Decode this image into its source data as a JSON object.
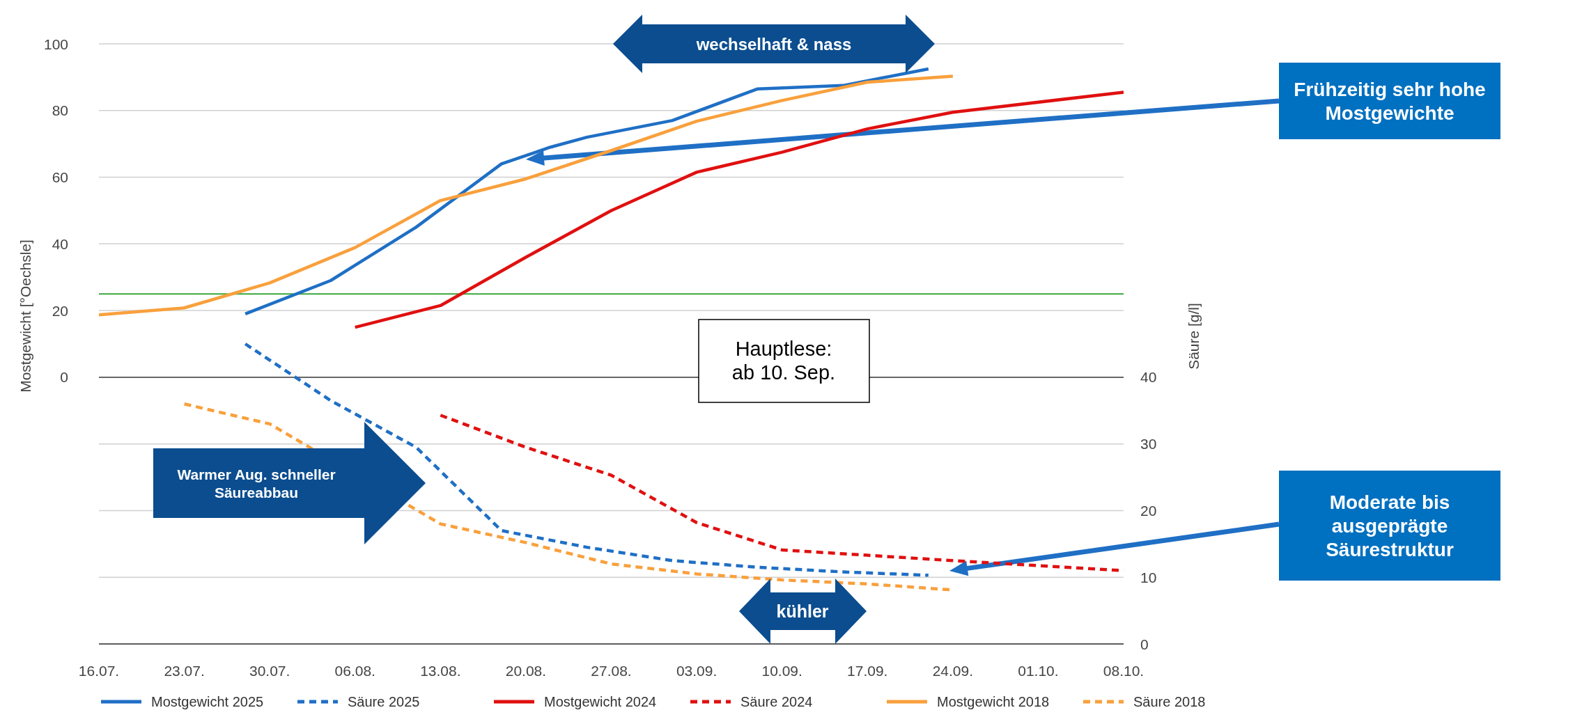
{
  "chart_data": {
    "type": "line",
    "xlabel": null,
    "ylabel": "Mostgewicht [°Oechsle]",
    "y2label": "Säure [g/l]",
    "xlim": [
      "--07-16",
      "--10-08"
    ],
    "xticks": [
      {
        "value": "--07-16",
        "label": "16.07."
      },
      {
        "value": "--07-23",
        "label": "23.07."
      },
      {
        "value": "--07-30",
        "label": "30.07."
      },
      {
        "value": "--08-06",
        "label": "06.08."
      },
      {
        "value": "--08-13",
        "label": "13.08."
      },
      {
        "value": "--08-20",
        "label": "20.08."
      },
      {
        "value": "--08-27",
        "label": "27.08."
      },
      {
        "value": "--09-03",
        "label": "03.09."
      },
      {
        "value": "--09-10",
        "label": "10.09."
      },
      {
        "value": "--09-17",
        "label": "17.09."
      },
      {
        "value": "--09-24",
        "label": "24.09."
      },
      {
        "value": "--10-01",
        "label": "01.10."
      },
      {
        "value": "--10-08",
        "label": "08.10."
      }
    ],
    "ylim": [
      -80,
      100
    ],
    "yticks": [
      {
        "value": -80,
        "label": null
      },
      {
        "value": -60,
        "label": null
      },
      {
        "value": -40,
        "label": null
      },
      {
        "value": -20,
        "label": null
      },
      0,
      20,
      40,
      60,
      80,
      100
    ],
    "y2lim": [
      0,
      90
    ],
    "y2ticks": [
      0,
      10,
      20,
      30,
      40
    ],
    "grid": "y",
    "legend": "bottom",
    "marker": "none",
    "series": [
      {
        "name": "Mostgewicht 2025",
        "color": "#1f6fc5",
        "line_style": "solid",
        "x": [
          "--07-28",
          "--08-04",
          "--08-11",
          "--08-18",
          "--08-22",
          "--08-25",
          "--09-01",
          "--09-08",
          "--09-15",
          "--09-22"
        ],
        "values": [
          19,
          29,
          45,
          64,
          69,
          72,
          77,
          86.5,
          87.5,
          92.5
        ]
      },
      {
        "name": "Säure 2025",
        "color": "#1f6fc5",
        "line_style": "dashed",
        "axis": "y2",
        "x": [
          "--07-28",
          "--08-04",
          "--08-11",
          "--08-18",
          "--08-25",
          "--09-01",
          "--09-08",
          "--09-15",
          "--09-22"
        ],
        "values": [
          45,
          36.5,
          29.5,
          17,
          14.5,
          12.5,
          11.5,
          10.8,
          10.3
        ]
      },
      {
        "name": "Mostgewicht 2024",
        "color": "#e01010",
        "line_style": "solid",
        "x": [
          "--08-06",
          "--08-13",
          "--08-20",
          "--08-27",
          "--09-03",
          "--09-10",
          "--09-17",
          "--09-24",
          "--10-08"
        ],
        "values": [
          15,
          21.5,
          36,
          50,
          61.5,
          67.5,
          74.5,
          79.5,
          85.5
        ]
      },
      {
        "name": "Säure 2024",
        "color": "#e01010",
        "line_style": "dashed",
        "axis": "y2",
        "x": [
          "--08-13",
          "--08-20",
          "--08-27",
          "--09-03",
          "--09-10",
          "--09-17",
          "--09-24",
          "--10-08"
        ],
        "values": [
          34.3,
          29.5,
          25.3,
          18.2,
          14.1,
          13.3,
          12.5,
          11
        ]
      },
      {
        "name": "Mostgewicht 2018",
        "color": "#f9a03c",
        "line_style": "solid",
        "x": [
          "--07-16",
          "--07-23",
          "--07-30",
          "--08-06",
          "--08-13",
          "--08-20",
          "--08-27",
          "--09-03",
          "--09-10",
          "--09-17",
          "--09-24"
        ],
        "values": [
          18.7,
          20.8,
          28.3,
          38.9,
          53,
          59.5,
          68,
          76.8,
          83,
          88.5,
          90.3
        ]
      },
      {
        "name": "Säure 2018",
        "color": "#f9a03c",
        "line_style": "dashed",
        "axis": "y2",
        "x": [
          "--07-23",
          "--07-30",
          "--08-13",
          "--08-20",
          "--08-27",
          "--09-03",
          "--09-10",
          "--09-17",
          "--09-24"
        ],
        "values": [
          36,
          33,
          18,
          15.2,
          12,
          10.5,
          9.6,
          9,
          8.1
        ]
      }
    ],
    "ref_lines": [
      {
        "axis": "y",
        "value": 25,
        "color": "#3aa63a"
      }
    ],
    "annotations": [
      "wechselhaft & nass",
      "Hauptlese:\nab 10. Sep.",
      "Warmer Aug. schneller\nSäureabbau",
      "kühler",
      "Frühzeitig sehr hohe\nMostgewichte",
      "Moderate bis\nausgeprägte\nSäurestruktur"
    ]
  }
}
